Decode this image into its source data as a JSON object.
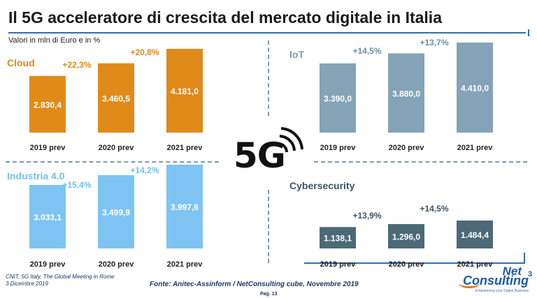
{
  "title": "Il 5G acceleratore di crescita del mercato digitale in Italia",
  "subtitle": "Valori in mln di Euro e in %",
  "center_logo": {
    "text": "5G"
  },
  "footer": {
    "left_line1": "CNIT, 5G Italy, The Global Meeting in Rome",
    "left_line2": "3 Dicembre 2019",
    "source": "Fonte: Anitec-Assinform / NetConsulting cube, Novembre  2019",
    "page": "Pag. 13"
  },
  "brand": {
    "net": "Net",
    "consulting": "Consulting",
    "cube": "3",
    "tagline": "Empowering your Digital Business"
  },
  "chart_data": [
    {
      "id": "cloud",
      "type": "bar",
      "label": "Cloud",
      "label_color": "#e08a1a",
      "bar_color": "#e08a1a",
      "growth_color": "#e08a1a",
      "categories": [
        "2019 prev",
        "2020 prev",
        "2021 prev"
      ],
      "values": [
        2830.4,
        3460.5,
        4181.0
      ],
      "value_labels": [
        "2.830,4",
        "3.460,5",
        "4.181,0"
      ],
      "growth_labels": [
        "+22,3%",
        "+20,8%"
      ],
      "ylim": [
        0,
        4181.0
      ]
    },
    {
      "id": "iot",
      "type": "bar",
      "label": "IoT",
      "label_color": "#7b9db3",
      "bar_color": "#84a3b6",
      "growth_color": "#6f8fa3",
      "categories": [
        "2019 prev",
        "2020 prev",
        "2021 prev"
      ],
      "values": [
        3390.0,
        3880.0,
        4410.0
      ],
      "value_labels": [
        "3.390,0",
        "3.880,0",
        "4.410,0"
      ],
      "growth_labels": [
        "+14,5%",
        "+13,7%"
      ],
      "ylim": [
        0,
        4410.0
      ]
    },
    {
      "id": "industria",
      "type": "bar",
      "label": "Industria 4.0",
      "label_color": "#74bff0",
      "bar_color": "#7ec4f2",
      "growth_color": "#74bff0",
      "categories": [
        "2019 prev",
        "2020 prev",
        "2021 prev"
      ],
      "values": [
        3033.1,
        3499.9,
        3997.6
      ],
      "value_labels": [
        "3.033,1",
        "3.499,9",
        "3.997,6"
      ],
      "growth_labels": [
        "+15,4%",
        "+14,2%"
      ],
      "ylim": [
        0,
        3997.6
      ]
    },
    {
      "id": "cyber",
      "type": "bar",
      "label": "Cybersecurity",
      "label_color": "#3d5561",
      "bar_color": "#4c6a76",
      "growth_color": "#3d5561",
      "categories": [
        "2019 prev",
        "2020 prev",
        "2021 prev"
      ],
      "values": [
        1138.1,
        1296.0,
        1484.4
      ],
      "value_labels": [
        "1.138,1",
        "1.296,0",
        "1.484,4"
      ],
      "growth_labels": [
        "+13,9%",
        "+14,5%"
      ],
      "ylim": [
        0,
        1484.4
      ]
    }
  ]
}
